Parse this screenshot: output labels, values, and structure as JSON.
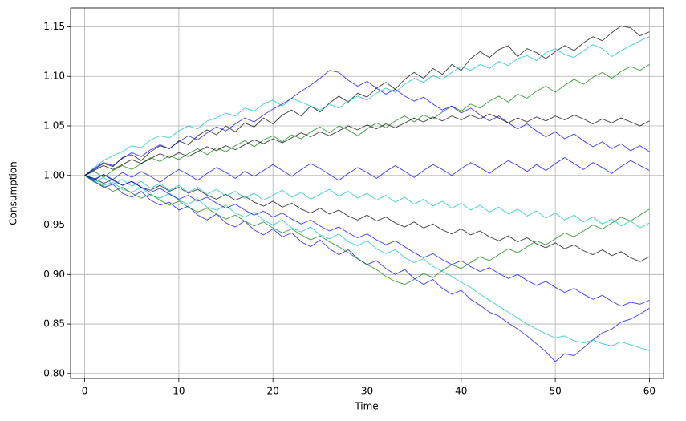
{
  "chart_data": {
    "type": "line",
    "xlabel": "Time",
    "ylabel": "Consumption",
    "xlim": [
      -1.5,
      61.5
    ],
    "ylim": [
      0.795,
      1.169
    ],
    "xticks": [
      0,
      10,
      20,
      30,
      40,
      50,
      60
    ],
    "yticks": [
      {
        "value": 0.8,
        "label": "0.80"
      },
      {
        "value": 0.85,
        "label": "0.85"
      },
      {
        "value": 0.9,
        "label": "0.90"
      },
      {
        "value": 0.95,
        "label": "0.95"
      },
      {
        "value": 1.0,
        "label": "1.00"
      },
      {
        "value": 1.05,
        "label": "1.05"
      },
      {
        "value": 1.1,
        "label": "1.10"
      },
      {
        "value": 1.15,
        "label": "1.15"
      }
    ],
    "grid": true,
    "x": [
      0,
      1,
      2,
      3,
      4,
      5,
      6,
      7,
      8,
      9,
      10,
      11,
      12,
      13,
      14,
      15,
      16,
      17,
      18,
      19,
      20,
      21,
      22,
      23,
      24,
      25,
      26,
      27,
      28,
      29,
      30,
      31,
      32,
      33,
      34,
      35,
      36,
      37,
      38,
      39,
      40,
      41,
      42,
      43,
      44,
      45,
      46,
      47,
      48,
      49,
      50,
      51,
      52,
      53,
      54,
      55,
      56,
      57,
      58,
      59,
      60
    ],
    "series": [
      {
        "color": "#000000",
        "values": [
          1.0,
          1.006,
          1.012,
          1.009,
          1.018,
          1.021,
          1.015,
          1.024,
          1.03,
          1.027,
          1.035,
          1.031,
          1.04,
          1.046,
          1.041,
          1.05,
          1.044,
          1.053,
          1.049,
          1.058,
          1.052,
          1.061,
          1.066,
          1.06,
          1.07,
          1.064,
          1.073,
          1.08,
          1.074,
          1.083,
          1.079,
          1.088,
          1.094,
          1.087,
          1.097,
          1.104,
          1.098,
          1.108,
          1.102,
          1.112,
          1.106,
          1.118,
          1.125,
          1.119,
          1.127,
          1.131,
          1.12,
          1.128,
          1.124,
          1.118,
          1.125,
          1.131,
          1.126,
          1.134,
          1.14,
          1.136,
          1.144,
          1.151,
          1.149,
          1.141,
          1.145
        ]
      },
      {
        "color": "#0000ff",
        "values": [
          1.0,
          0.994,
          0.988,
          0.991,
          0.982,
          0.978,
          0.984,
          0.975,
          0.97,
          0.973,
          0.965,
          0.969,
          0.96,
          0.955,
          0.961,
          0.952,
          0.948,
          0.954,
          0.945,
          0.94,
          0.946,
          0.938,
          0.942,
          0.933,
          0.928,
          0.935,
          0.926,
          0.92,
          0.925,
          0.916,
          0.91,
          0.914,
          0.906,
          0.9,
          0.905,
          0.896,
          0.89,
          0.895,
          0.886,
          0.88,
          0.884,
          0.875,
          0.869,
          0.862,
          0.858,
          0.851,
          0.845,
          0.838,
          0.83,
          0.822,
          0.812,
          0.82,
          0.818,
          0.826,
          0.834,
          0.841,
          0.845,
          0.852,
          0.855,
          0.86,
          0.866
        ]
      },
      {
        "color": "#00bfbf",
        "values": [
          1.0,
          1.008,
          1.015,
          1.02,
          1.024,
          1.03,
          1.028,
          1.036,
          1.04,
          1.038,
          1.045,
          1.05,
          1.047,
          1.055,
          1.058,
          1.063,
          1.06,
          1.068,
          1.065,
          1.072,
          1.076,
          1.07,
          1.078,
          1.074,
          1.07,
          1.066,
          1.072,
          1.068,
          1.075,
          1.08,
          1.076,
          1.083,
          1.088,
          1.084,
          1.092,
          1.098,
          1.094,
          1.101,
          1.097,
          1.104,
          1.11,
          1.106,
          1.112,
          1.108,
          1.115,
          1.111,
          1.118,
          1.121,
          1.116,
          1.124,
          1.128,
          1.122,
          1.119,
          1.126,
          1.132,
          1.128,
          1.12,
          1.126,
          1.131,
          1.136,
          1.14
        ]
      },
      {
        "color": "#00bfbf",
        "values": [
          1.0,
          0.996,
          0.99,
          0.993,
          0.986,
          0.983,
          0.988,
          0.98,
          0.977,
          0.982,
          0.975,
          0.971,
          0.976,
          0.968,
          0.965,
          0.97,
          0.962,
          0.958,
          0.963,
          0.955,
          0.95,
          0.955,
          0.947,
          0.943,
          0.948,
          0.94,
          0.936,
          0.941,
          0.933,
          0.929,
          0.934,
          0.926,
          0.921,
          0.925,
          0.917,
          0.912,
          0.916,
          0.908,
          0.903,
          0.898,
          0.892,
          0.887,
          0.88,
          0.874,
          0.868,
          0.862,
          0.856,
          0.85,
          0.845,
          0.84,
          0.836,
          0.838,
          0.833,
          0.831,
          0.834,
          0.83,
          0.828,
          0.832,
          0.829,
          0.826,
          0.823
        ]
      },
      {
        "color": "#007f00",
        "values": [
          1.0,
          1.004,
          0.998,
          1.005,
          1.01,
          1.006,
          1.012,
          1.018,
          1.014,
          1.02,
          1.016,
          1.022,
          1.027,
          1.021,
          1.028,
          1.024,
          1.03,
          1.035,
          1.029,
          1.036,
          1.04,
          1.034,
          1.041,
          1.037,
          1.044,
          1.049,
          1.043,
          1.05,
          1.046,
          1.04,
          1.047,
          1.053,
          1.048,
          1.055,
          1.06,
          1.054,
          1.061,
          1.057,
          1.064,
          1.07,
          1.065,
          1.072,
          1.068,
          1.075,
          1.08,
          1.074,
          1.082,
          1.078,
          1.085,
          1.09,
          1.084,
          1.091,
          1.097,
          1.092,
          1.099,
          1.104,
          1.098,
          1.105,
          1.11,
          1.106,
          1.112
        ]
      },
      {
        "color": "#0000ff",
        "values": [
          1.0,
          0.995,
          1.001,
          0.996,
          1.003,
          0.998,
          1.004,
          0.999,
          0.993,
          1.0,
          1.006,
          1.001,
          0.995,
          1.002,
          1.008,
          1.003,
          0.997,
          1.004,
          0.999,
          1.005,
          1.011,
          1.005,
          0.999,
          1.006,
          1.012,
          1.007,
          1.001,
          0.995,
          1.002,
          1.008,
          1.003,
          0.997,
          1.004,
          1.01,
          1.004,
          0.998,
          1.005,
          1.011,
          1.006,
          1.0,
          1.007,
          1.013,
          1.008,
          1.002,
          1.009,
          1.015,
          1.01,
          1.004,
          1.011,
          1.005,
          1.012,
          1.018,
          1.012,
          1.006,
          1.013,
          1.008,
          1.002,
          1.009,
          1.015,
          1.01,
          1.005
        ]
      },
      {
        "color": "#000000",
        "values": [
          1.0,
          0.997,
          0.992,
          0.996,
          0.99,
          0.994,
          0.988,
          0.985,
          0.99,
          0.984,
          0.988,
          0.982,
          0.986,
          0.98,
          0.976,
          0.981,
          0.975,
          0.979,
          0.973,
          0.969,
          0.974,
          0.968,
          0.972,
          0.966,
          0.962,
          0.967,
          0.961,
          0.965,
          0.959,
          0.955,
          0.96,
          0.954,
          0.958,
          0.952,
          0.948,
          0.953,
          0.947,
          0.951,
          0.945,
          0.941,
          0.946,
          0.94,
          0.944,
          0.938,
          0.934,
          0.939,
          0.933,
          0.937,
          0.931,
          0.927,
          0.932,
          0.926,
          0.93,
          0.924,
          0.92,
          0.925,
          0.919,
          0.923,
          0.917,
          0.913,
          0.918
        ]
      },
      {
        "color": "#0000ff",
        "values": [
          1.0,
          1.007,
          1.013,
          1.01,
          1.017,
          1.023,
          1.019,
          1.026,
          1.031,
          1.027,
          1.034,
          1.04,
          1.036,
          1.043,
          1.049,
          1.045,
          1.052,
          1.058,
          1.054,
          1.061,
          1.067,
          1.072,
          1.078,
          1.085,
          1.091,
          1.098,
          1.106,
          1.104,
          1.096,
          1.09,
          1.095,
          1.088,
          1.082,
          1.087,
          1.08,
          1.075,
          1.079,
          1.072,
          1.066,
          1.07,
          1.063,
          1.068,
          1.061,
          1.055,
          1.06,
          1.053,
          1.047,
          1.052,
          1.045,
          1.039,
          1.044,
          1.037,
          1.042,
          1.035,
          1.029,
          1.034,
          1.027,
          1.032,
          1.025,
          1.03,
          1.024
        ]
      },
      {
        "color": "#00bfbf",
        "values": [
          1.0,
          0.993,
          0.998,
          0.991,
          0.996,
          0.989,
          0.994,
          0.987,
          0.992,
          0.985,
          0.99,
          0.983,
          0.988,
          0.981,
          0.986,
          0.979,
          0.984,
          0.977,
          0.982,
          0.975,
          0.98,
          0.985,
          0.978,
          0.983,
          0.976,
          0.981,
          0.986,
          0.979,
          0.984,
          0.977,
          0.982,
          0.975,
          0.98,
          0.973,
          0.978,
          0.971,
          0.976,
          0.969,
          0.974,
          0.967,
          0.972,
          0.965,
          0.97,
          0.963,
          0.968,
          0.961,
          0.966,
          0.959,
          0.964,
          0.957,
          0.962,
          0.955,
          0.96,
          0.953,
          0.958,
          0.951,
          0.956,
          0.949,
          0.954,
          0.947,
          0.952
        ]
      },
      {
        "color": "#007f00",
        "values": [
          1.0,
          0.994,
          0.989,
          0.984,
          0.988,
          0.982,
          0.977,
          0.981,
          0.975,
          0.97,
          0.974,
          0.968,
          0.963,
          0.967,
          0.961,
          0.956,
          0.96,
          0.954,
          0.949,
          0.953,
          0.947,
          0.942,
          0.946,
          0.94,
          0.935,
          0.939,
          0.933,
          0.928,
          0.922,
          0.916,
          0.91,
          0.905,
          0.898,
          0.893,
          0.89,
          0.895,
          0.901,
          0.897,
          0.904,
          0.91,
          0.906,
          0.912,
          0.918,
          0.914,
          0.92,
          0.926,
          0.922,
          0.928,
          0.934,
          0.93,
          0.936,
          0.942,
          0.938,
          0.944,
          0.95,
          0.946,
          0.952,
          0.958,
          0.954,
          0.96,
          0.966
        ]
      },
      {
        "color": "#0000ff",
        "values": [
          1.0,
          0.996,
          1.001,
          0.995,
          0.99,
          0.994,
          0.988,
          0.983,
          0.987,
          0.981,
          0.976,
          0.98,
          0.974,
          0.978,
          0.972,
          0.967,
          0.971,
          0.965,
          0.96,
          0.964,
          0.958,
          0.962,
          0.956,
          0.951,
          0.955,
          0.949,
          0.944,
          0.948,
          0.942,
          0.937,
          0.941,
          0.935,
          0.93,
          0.934,
          0.928,
          0.922,
          0.917,
          0.921,
          0.915,
          0.91,
          0.914,
          0.908,
          0.903,
          0.907,
          0.901,
          0.896,
          0.9,
          0.894,
          0.889,
          0.893,
          0.887,
          0.882,
          0.886,
          0.88,
          0.875,
          0.879,
          0.873,
          0.868,
          0.872,
          0.87,
          0.874
        ]
      },
      {
        "color": "#000000",
        "values": [
          1.0,
          1.005,
          1.01,
          1.006,
          1.011,
          1.016,
          1.012,
          1.017,
          1.022,
          1.018,
          1.023,
          1.019,
          1.024,
          1.029,
          1.025,
          1.03,
          1.026,
          1.031,
          1.036,
          1.032,
          1.037,
          1.033,
          1.038,
          1.043,
          1.039,
          1.044,
          1.04,
          1.045,
          1.05,
          1.046,
          1.051,
          1.047,
          1.052,
          1.048,
          1.053,
          1.058,
          1.054,
          1.059,
          1.055,
          1.06,
          1.056,
          1.061,
          1.057,
          1.062,
          1.058,
          1.053,
          1.058,
          1.054,
          1.059,
          1.055,
          1.06,
          1.056,
          1.061,
          1.057,
          1.052,
          1.057,
          1.053,
          1.058,
          1.054,
          1.05,
          1.055
        ]
      }
    ]
  }
}
